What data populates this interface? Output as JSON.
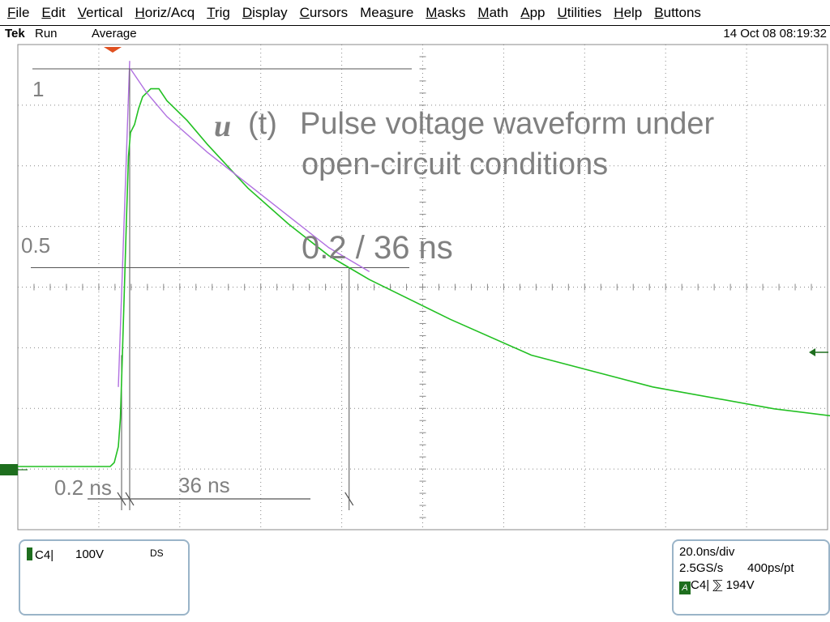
{
  "menu": {
    "items": [
      {
        "name": "menu-file",
        "label": "File",
        "mn": "F"
      },
      {
        "name": "menu-edit",
        "label": "Edit",
        "mn": "E"
      },
      {
        "name": "menu-vertical",
        "label": "Vertical",
        "mn": "V"
      },
      {
        "name": "menu-horiz-acq",
        "label": "Horiz/Acq",
        "mn": "H"
      },
      {
        "name": "menu-trig",
        "label": "Trig",
        "mn": "T"
      },
      {
        "name": "menu-display",
        "label": "Display",
        "mn": "D"
      },
      {
        "name": "menu-cursors",
        "label": "Cursors",
        "mn": "C"
      },
      {
        "name": "menu-measure",
        "label": "Measure",
        "mn": "s"
      },
      {
        "name": "menu-masks",
        "label": "Masks",
        "mn": "M"
      },
      {
        "name": "menu-math",
        "label": "Math",
        "mn": "M"
      },
      {
        "name": "menu-app",
        "label": "App",
        "mn": "A"
      },
      {
        "name": "menu-utilities",
        "label": "Utilities",
        "mn": "U"
      },
      {
        "name": "menu-help",
        "label": "Help",
        "mn": "H"
      },
      {
        "name": "menu-buttons",
        "label": "Buttons",
        "mn": "B"
      }
    ]
  },
  "status": {
    "brand": "Tek",
    "run_state": "Run",
    "acq_mode": "Average",
    "datetime": "14 Oct 08 08:19:32"
  },
  "annotations": {
    "level_1": "1",
    "level_half": "0.5",
    "title_symbol": "u",
    "title_arg": "(t)",
    "title_line1": "Pulse voltage waveform under",
    "title_line2": "open-circuit conditions",
    "timing": "0.2 / 36 ns",
    "rise_label": "0.2 ns",
    "fall_label": "36 ns"
  },
  "channel_box": {
    "channel": "C4",
    "scale": "100V",
    "coupling": "DS"
  },
  "timebase_box": {
    "horizontal_scale": "20.0ns/div",
    "sample_rate": "2.5GS/s",
    "record_res": "400ps/pt",
    "trigger_flag": "A",
    "trigger_channel": "C4",
    "trigger_slope": "⅀",
    "trigger_level": "194V"
  },
  "colors": {
    "trace": "#22c022",
    "fit": "#b070e0",
    "fit_overlay": "#6a7a9a",
    "grid": "#888888",
    "annotation": "#808080",
    "box_border": "#9ab4c8",
    "channel_marker": "#1e6e1e",
    "trigger_marker": "#e05020"
  },
  "chart_data": {
    "type": "line",
    "x_scale": "20.0ns/div",
    "y_scale": "100V",
    "grid": true,
    "series": [
      {
        "values": [
          [
            -40,
            0
          ],
          [
            -20,
            0
          ],
          [
            -10,
            0
          ],
          [
            -4,
            0
          ],
          [
            -3,
            0.01
          ],
          [
            -2,
            0.05
          ],
          [
            -1.5,
            0.12
          ],
          [
            -1.0,
            0.28
          ],
          [
            -0.5,
            0.45
          ],
          [
            0.0,
            0.62
          ],
          [
            0.5,
            0.78
          ],
          [
            1.0,
            0.84
          ],
          [
            2,
            0.86
          ],
          [
            3,
            0.9
          ],
          [
            4,
            0.93
          ],
          [
            6,
            0.95
          ],
          [
            8,
            0.95
          ],
          [
            10,
            0.92
          ],
          [
            15,
            0.87
          ],
          [
            20,
            0.81
          ],
          [
            30,
            0.7
          ],
          [
            40,
            0.61
          ],
          [
            50,
            0.53
          ],
          [
            55,
            0.5
          ],
          [
            60,
            0.47
          ],
          [
            80,
            0.37
          ],
          [
            100,
            0.28
          ],
          [
            130,
            0.2
          ],
          [
            160,
            0.145
          ],
          [
            200,
            0.095
          ],
          [
            250,
            0.06
          ],
          [
            300,
            0.04
          ],
          [
            340,
            0.03
          ]
        ]
      },
      {
        "values": [
          [
            1,
            1.0
          ],
          [
            5,
            0.94
          ],
          [
            10,
            0.88
          ],
          [
            20,
            0.79
          ],
          [
            30,
            0.71
          ],
          [
            40,
            0.63
          ],
          [
            50,
            0.55
          ],
          [
            60,
            0.49
          ]
        ]
      }
    ]
  }
}
